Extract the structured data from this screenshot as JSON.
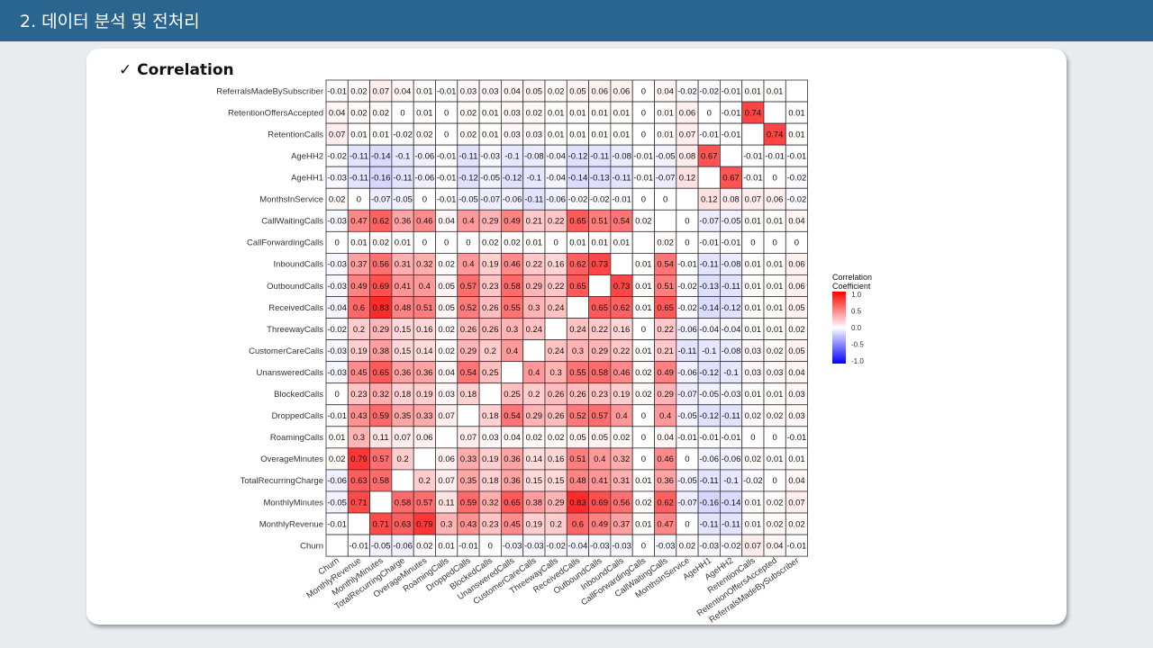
{
  "header": {
    "title": "2. 데이터 분석 및 전처리"
  },
  "section": {
    "title": "✓ Correlation"
  },
  "chart_data": {
    "type": "heatmap",
    "variables": [
      "Churn",
      "MonthlyRevenue",
      "MonthlyMinutes",
      "TotalRecurringCharge",
      "OverageMinutes",
      "RoamingCalls",
      "DroppedCalls",
      "BlockedCalls",
      "UnansweredCalls",
      "CustomerCareCalls",
      "ThreewayCalls",
      "ReceivedCalls",
      "OutboundCalls",
      "InboundCalls",
      "CallForwardingCalls",
      "CallWaitingCalls",
      "MonthsInService",
      "AgeHH1",
      "AgeHH2",
      "RetentionCalls",
      "RetentionOffersAccepted",
      "ReferralsMadeBySubscriber"
    ],
    "rows_top_to_bottom": [
      "ReferralsMadeBySubscriber",
      "RetentionOffersAccepted",
      "RetentionCalls",
      "AgeHH2",
      "AgeHH1",
      "MonthsInService",
      "CallWaitingCalls",
      "CallForwardingCalls",
      "InboundCalls",
      "OutboundCalls",
      "ReceivedCalls",
      "ThreewayCalls",
      "CustomerCareCalls",
      "UnansweredCalls",
      "BlockedCalls",
      "DroppedCalls",
      "RoamingCalls",
      "OverageMinutes",
      "TotalRecurringCharge",
      "MonthlyMinutes",
      "MonthlyRevenue",
      "Churn"
    ],
    "values_top_to_bottom": [
      [
        "-0.01",
        "0.02",
        "0.07",
        "0.04",
        "0.01",
        "-0.01",
        "0.03",
        "0.03",
        "0.04",
        "0.05",
        "0.02",
        "0.05",
        "0.06",
        "0.06",
        "0",
        "0.04",
        "-0.02",
        "-0.02",
        "-0.01",
        "0.01",
        "0.01",
        ""
      ],
      [
        "0.04",
        "0.02",
        "0.02",
        "0",
        "0.01",
        "0",
        "0.02",
        "0.01",
        "0.03",
        "0.02",
        "0.01",
        "0.01",
        "0.01",
        "0.01",
        "0",
        "0.01",
        "0.06",
        "0",
        "-0.01",
        "0.74",
        "",
        "0.01"
      ],
      [
        "0.07",
        "0.01",
        "0.01",
        "-0.02",
        "0.02",
        "0",
        "0.02",
        "0.01",
        "0.03",
        "0.03",
        "0.01",
        "0.01",
        "0.01",
        "0.01",
        "0",
        "0.01",
        "0.07",
        "-0.01",
        "-0.01",
        "",
        "0.74",
        "0.01"
      ],
      [
        "-0.02",
        "-0.11",
        "-0.14",
        "-0.1",
        "-0.06",
        "-0.01",
        "-0.11",
        "-0.03",
        "-0.1",
        "-0.08",
        "-0.04",
        "-0.12",
        "-0.11",
        "-0.08",
        "-0.01",
        "-0.05",
        "0.08",
        "0.67",
        "",
        "-0.01",
        "-0.01",
        "-0.01"
      ],
      [
        "-0.03",
        "-0.11",
        "-0.16",
        "-0.11",
        "-0.06",
        "-0.01",
        "-0.12",
        "-0.05",
        "-0.12",
        "-0.1",
        "-0.04",
        "-0.14",
        "-0.13",
        "-0.11",
        "-0.01",
        "-0.07",
        "0.12",
        "",
        "0.67",
        "-0.01",
        "0",
        "-0.02"
      ],
      [
        "0.02",
        "0",
        "-0.07",
        "-0.05",
        "0",
        "-0.01",
        "-0.05",
        "-0.07",
        "-0.06",
        "-0.11",
        "-0.06",
        "-0.02",
        "-0.02",
        "-0.01",
        "0",
        "0",
        "",
        "0.12",
        "0.08",
        "0.07",
        "0.06",
        "-0.02"
      ],
      [
        "-0.03",
        "0.47",
        "0.62",
        "0.36",
        "0.46",
        "0.04",
        "0.4",
        "0.29",
        "0.49",
        "0.21",
        "0.22",
        "0.65",
        "0.51",
        "0.54",
        "0.02",
        "",
        "0",
        "-0.07",
        "-0.05",
        "0.01",
        "0.01",
        "0.04"
      ],
      [
        "0",
        "0.01",
        "0.02",
        "0.01",
        "0",
        "0",
        "0",
        "0.02",
        "0.02",
        "0.01",
        "0",
        "0.01",
        "0.01",
        "0.01",
        "",
        "0.02",
        "0",
        "-0.01",
        "-0.01",
        "0",
        "0",
        "0"
      ],
      [
        "-0.03",
        "0.37",
        "0.56",
        "0.31",
        "0.32",
        "0.02",
        "0.4",
        "0.19",
        "0.46",
        "0.22",
        "0.16",
        "0.62",
        "0.73",
        "",
        "0.01",
        "0.54",
        "-0.01",
        "-0.11",
        "-0.08",
        "0.01",
        "0.01",
        "0.06"
      ],
      [
        "-0.03",
        "0.49",
        "0.69",
        "0.41",
        "0.4",
        "0.05",
        "0.57",
        "0.23",
        "0.58",
        "0.29",
        "0.22",
        "0.65",
        "",
        "0.73",
        "0.01",
        "0.51",
        "-0.02",
        "-0.13",
        "-0.11",
        "0.01",
        "0.01",
        "0.06"
      ],
      [
        "-0.04",
        "0.6",
        "0.83",
        "0.48",
        "0.51",
        "0.05",
        "0.52",
        "0.26",
        "0.55",
        "0.3",
        "0.24",
        "",
        "0.65",
        "0.62",
        "0.01",
        "0.65",
        "-0.02",
        "-0.14",
        "-0.12",
        "0.01",
        "0.01",
        "0.05"
      ],
      [
        "-0.02",
        "0.2",
        "0.29",
        "0.15",
        "0.16",
        "0.02",
        "0.26",
        "0.26",
        "0.3",
        "0.24",
        "",
        "0.24",
        "0.22",
        "0.16",
        "0",
        "0.22",
        "-0.06",
        "-0.04",
        "-0.04",
        "0.01",
        "0.01",
        "0.02"
      ],
      [
        "-0.03",
        "0.19",
        "0.38",
        "0.15",
        "0.14",
        "0.02",
        "0.29",
        "0.2",
        "0.4",
        "",
        "0.24",
        "0.3",
        "0.29",
        "0.22",
        "0.01",
        "0.21",
        "-0.11",
        "-0.1",
        "-0.08",
        "0.03",
        "0.02",
        "0.05"
      ],
      [
        "-0.03",
        "0.45",
        "0.65",
        "0.36",
        "0.36",
        "0.04",
        "0.54",
        "0.25",
        "",
        "0.4",
        "0.3",
        "0.55",
        "0.58",
        "0.46",
        "0.02",
        "0.49",
        "-0.06",
        "-0.12",
        "-0.1",
        "0.03",
        "0.03",
        "0.04"
      ],
      [
        "0",
        "0.23",
        "0.32",
        "0.18",
        "0.19",
        "0.03",
        "0.18",
        "",
        "0.25",
        "0.2",
        "0.26",
        "0.26",
        "0.23",
        "0.19",
        "0.02",
        "0.29",
        "-0.07",
        "-0.05",
        "-0.03",
        "0.01",
        "0.01",
        "0.03"
      ],
      [
        "-0.01",
        "0.43",
        "0.59",
        "0.35",
        "0.33",
        "0.07",
        "",
        "0.18",
        "0.54",
        "0.29",
        "0.26",
        "0.52",
        "0.57",
        "0.4",
        "0",
        "0.4",
        "-0.05",
        "-0.12",
        "-0.11",
        "0.02",
        "0.02",
        "0.03"
      ],
      [
        "0.01",
        "0.3",
        "0.11",
        "0.07",
        "0.06",
        "",
        "0.07",
        "0.03",
        "0.04",
        "0.02",
        "0.02",
        "0.05",
        "0.05",
        "0.02",
        "0",
        "0.04",
        "-0.01",
        "-0.01",
        "-0.01",
        "0",
        "0",
        "-0.01"
      ],
      [
        "0.02",
        "0.79",
        "0.57",
        "0.2",
        "",
        "0.06",
        "0.33",
        "0.19",
        "0.36",
        "0.14",
        "0.16",
        "0.51",
        "0.4",
        "0.32",
        "0",
        "0.46",
        "0",
        "-0.06",
        "-0.06",
        "0.02",
        "0.01",
        "0.01"
      ],
      [
        "-0.06",
        "0.63",
        "0.58",
        "",
        "0.2",
        "0.07",
        "0.35",
        "0.18",
        "0.36",
        "0.15",
        "0.15",
        "0.48",
        "0.41",
        "0.31",
        "0.01",
        "0.36",
        "-0.05",
        "-0.11",
        "-0.1",
        "-0.02",
        "0",
        "0.04"
      ],
      [
        "-0.05",
        "0.71",
        "",
        "0.58",
        "0.57",
        "0.11",
        "0.59",
        "0.32",
        "0.65",
        "0.38",
        "0.29",
        "0.83",
        "0.69",
        "0.56",
        "0.02",
        "0.62",
        "-0.07",
        "-0.16",
        "-0.14",
        "0.01",
        "0.02",
        "0.07"
      ],
      [
        "-0.01",
        "",
        "0.71",
        "0.63",
        "0.79",
        "0.3",
        "0.43",
        "0.23",
        "0.45",
        "0.19",
        "0.2",
        "0.6",
        "0.49",
        "0.37",
        "0.01",
        "0.47",
        "0",
        "-0.11",
        "-0.11",
        "0.01",
        "0.02",
        "0.02"
      ],
      [
        "",
        "-0.01",
        "-0.05",
        "-0.06",
        "0.02",
        "0.01",
        "-0.01",
        "0",
        "-0.03",
        "-0.03",
        "-0.02",
        "-0.04",
        "-0.03",
        "-0.03",
        "0",
        "-0.03",
        "0.02",
        "-0.03",
        "-0.02",
        "0.07",
        "0.04",
        "-0.01"
      ]
    ],
    "legend": {
      "title_line1": "Correlation",
      "title_line2": "Coefficient",
      "ticks": [
        "1.0",
        "0.5",
        "0.0",
        "-0.5",
        "-1.0"
      ],
      "colors": {
        "high": "#ff0000",
        "mid": "#ffffff",
        "low": "#0000ff"
      }
    }
  }
}
